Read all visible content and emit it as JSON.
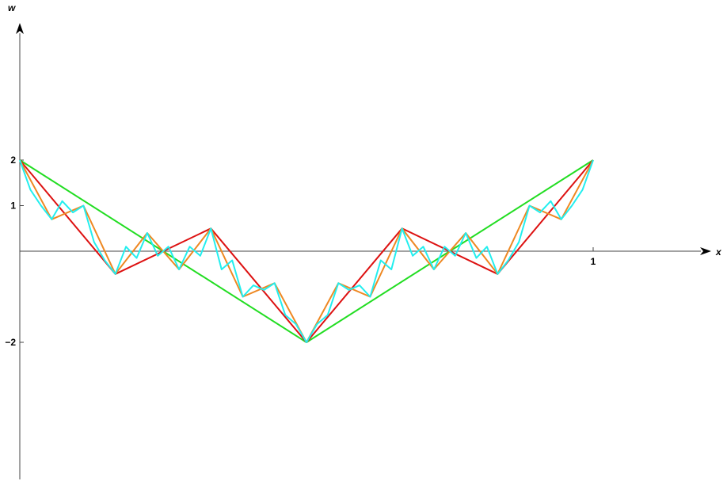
{
  "chart_data": {
    "type": "line",
    "title": "",
    "xlabel": "x",
    "ylabel": "w",
    "xlim": [
      0,
      1.2
    ],
    "ylim": [
      -3,
      5
    ],
    "x_ticks": [
      {
        "value": 1,
        "label": "1"
      }
    ],
    "y_ticks": [
      {
        "value": 2,
        "label": "2"
      },
      {
        "value": 1,
        "label": "1"
      },
      {
        "value": -2,
        "label": "−2"
      }
    ],
    "grid": false,
    "legend": "none",
    "series": [
      {
        "color": "#22dd22",
        "x": [
          0,
          0.5,
          1
        ],
        "y": [
          2,
          -2,
          2
        ]
      },
      {
        "color": "#dd1111",
        "x": [
          0,
          0.1667,
          0.3333,
          0.5,
          0.6667,
          0.8333,
          1
        ],
        "y": [
          2,
          -0.5,
          0.5,
          -2,
          0.5,
          -0.5,
          2
        ]
      },
      {
        "color": "#ee8822",
        "x": [
          0,
          0.0556,
          0.1111,
          0.1667,
          0.2222,
          0.2778,
          0.3333,
          0.3889,
          0.4444,
          0.5,
          0.5556,
          0.6111,
          0.6667,
          0.7222,
          0.7778,
          0.8333,
          0.8889,
          0.9444,
          1
        ],
        "y": [
          2,
          0.7,
          1,
          -0.5,
          0.4,
          -0.4,
          0.5,
          -1,
          -0.7,
          -2,
          -0.7,
          -1,
          0.5,
          -0.4,
          0.4,
          -0.5,
          1,
          0.7,
          2
        ]
      },
      {
        "color": "#22eeee",
        "x": [
          0,
          0.0185,
          0.037,
          0.0556,
          0.0741,
          0.0926,
          0.1111,
          0.1296,
          0.1481,
          0.1667,
          0.1852,
          0.2037,
          0.2222,
          0.2407,
          0.2593,
          0.2778,
          0.2963,
          0.3148,
          0.3333,
          0.3519,
          0.3704,
          0.3889,
          0.4074,
          0.4259,
          0.4444,
          0.463,
          0.4815,
          0.5,
          0.5185,
          0.537,
          0.5556,
          0.5741,
          0.5926,
          0.6111,
          0.6296,
          0.6481,
          0.6667,
          0.6852,
          0.7037,
          0.7222,
          0.7407,
          0.7593,
          0.7778,
          0.7963,
          0.8148,
          0.8333,
          0.8519,
          0.8704,
          0.8889,
          0.9074,
          0.9259,
          0.9444,
          0.963,
          0.9815,
          1
        ],
        "y": [
          2,
          1.35,
          1.0,
          0.7,
          1.1,
          0.85,
          1,
          0.2,
          -0.2,
          -0.5,
          0.1,
          -0.15,
          0.4,
          -0.1,
          0.1,
          -0.4,
          0.1,
          -0.1,
          0.5,
          -0.4,
          -0.2,
          -1,
          -0.75,
          -0.85,
          -0.7,
          -1.4,
          -1.6,
          -2,
          -1.6,
          -1.4,
          -0.7,
          -0.85,
          -0.75,
          -1,
          -0.2,
          -0.4,
          0.5,
          -0.1,
          0.1,
          -0.4,
          0.1,
          -0.1,
          0.4,
          -0.15,
          0.1,
          -0.5,
          -0.2,
          0.2,
          1,
          0.85,
          1.1,
          0.7,
          1.0,
          1.35,
          2
        ]
      }
    ]
  }
}
